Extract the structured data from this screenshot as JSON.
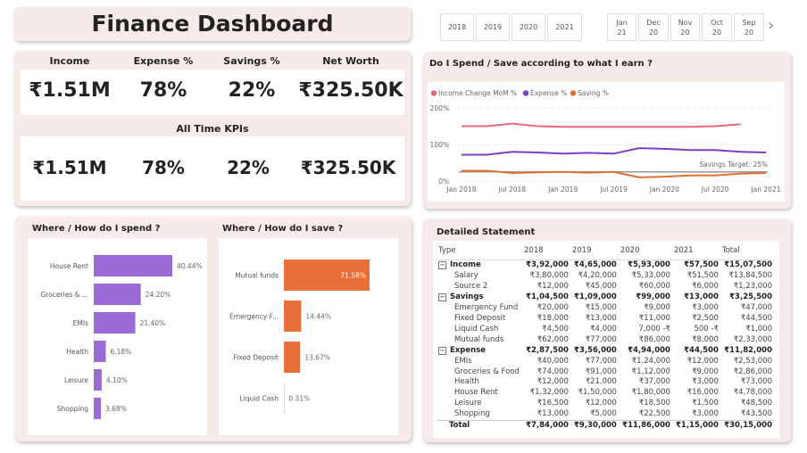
{
  "title": "Finance Dashboard",
  "year_slicer": [
    "2018",
    "2019",
    "2020",
    "2021"
  ],
  "month_slicer": [
    {
      "month": "Jan",
      "year": "21"
    },
    {
      "month": "Dec",
      "year": "20"
    },
    {
      "month": "Nov",
      "year": "20"
    },
    {
      "month": "Oct",
      "year": "20"
    },
    {
      "month": "Sep",
      "year": "20"
    }
  ],
  "next_glyph": "›",
  "kpis": {
    "labels": [
      "Income",
      "Expense %",
      "Savings %",
      "Net Worth"
    ],
    "values": [
      "₹1.51M",
      "78%",
      "22%",
      "₹325.50K"
    ],
    "all_time_title": "All Time KPIs",
    "all_time_values": [
      "₹1.51M",
      "78%",
      "22%",
      "₹325.50K"
    ]
  },
  "line_chart": {
    "title": "Do I Spend / Save according to what I earn ?",
    "legend": [
      "Income Change MoM %",
      "Expense %",
      "Saving %"
    ],
    "colors": [
      "#e0697a",
      "#7b3fc4",
      "#e07030"
    ],
    "y_ticks": [
      "200%",
      "100%",
      "0%"
    ],
    "x_ticks": [
      "Jan 2018",
      "Jul 2018",
      "Jan 2019",
      "Jul 2019",
      "Jan 2020",
      "Jul 2020",
      "Jan 2021"
    ],
    "target_label": "Savings Target: 25%",
    "chart_data": {
      "type": "line",
      "x": [
        "Jan 2018",
        "Apr 2018",
        "Jul 2018",
        "Oct 2018",
        "Jan 2019",
        "Apr 2019",
        "Jul 2019",
        "Oct 2019",
        "Jan 2020",
        "Apr 2020",
        "Jul 2020",
        "Oct 2020",
        "Jan 2021"
      ],
      "series": [
        {
          "name": "Income Change MoM %",
          "values": [
            150,
            150,
            157,
            150,
            148,
            148,
            148,
            148,
            148,
            148,
            150,
            155,
            null
          ]
        },
        {
          "name": "Expense %",
          "values": [
            72,
            72,
            80,
            78,
            75,
            77,
            75,
            90,
            88,
            85,
            85,
            80,
            78
          ]
        },
        {
          "name": "Saving %",
          "values": [
            28,
            28,
            22,
            24,
            25,
            23,
            25,
            10,
            12,
            15,
            15,
            20,
            22
          ]
        }
      ],
      "target": 25,
      "ylim": [
        0,
        200
      ]
    }
  },
  "spend_chart": {
    "title": "Where / How do I spend ?",
    "color": "#9a6bd6",
    "chart_data": {
      "type": "bar",
      "categories": [
        "House Rent",
        "Groceries & ...",
        "EMIs",
        "Health",
        "Leisure",
        "Shopping"
      ],
      "values": [
        40.44,
        24.2,
        21.4,
        6.18,
        4.1,
        3.68
      ],
      "labels": [
        "40.44%",
        "24.20%",
        "21.40%",
        "6.18%",
        "4.10%",
        "3.68%"
      ]
    }
  },
  "save_chart": {
    "title": "Where / How do I save ?",
    "color": "#e87038",
    "chart_data": {
      "type": "bar",
      "categories": [
        "Mutual funds",
        "Emergency F...",
        "Fixed Deposit",
        "Liquid Cash"
      ],
      "values": [
        71.58,
        14.44,
        13.67,
        0.31
      ],
      "labels": [
        "71.58%",
        "14.44%",
        "13.67%",
        "0.31%"
      ]
    }
  },
  "statement": {
    "title": "Detailed Statement",
    "columns": [
      "Type",
      "2018",
      "2019",
      "2020",
      "2021",
      "Total"
    ],
    "rows": [
      {
        "kind": "grp",
        "cells": [
          "Income",
          "₹3,92,000",
          "₹4,65,000",
          "₹5,93,000",
          "₹57,500",
          "₹15,07,500"
        ]
      },
      {
        "kind": "child",
        "cells": [
          "Salary",
          "₹3,80,000",
          "₹4,20,000",
          "₹5,33,000",
          "₹51,500",
          "₹13,84,500"
        ]
      },
      {
        "kind": "child",
        "cells": [
          "Source 2",
          "₹12,000",
          "₹45,000",
          "₹60,000",
          "₹6,000",
          "₹1,23,000"
        ]
      },
      {
        "kind": "grp",
        "cells": [
          "Savings",
          "₹1,04,500",
          "₹1,09,000",
          "₹99,000",
          "₹13,000",
          "₹3,25,500"
        ]
      },
      {
        "kind": "child",
        "cells": [
          "Emergency Fund",
          "₹20,000",
          "₹15,000",
          "₹9,000",
          "₹3,000",
          "₹47,000"
        ]
      },
      {
        "kind": "child",
        "cells": [
          "Fixed Deposit",
          "₹18,000",
          "₹13,000",
          "₹11,000",
          "₹2,500",
          "₹44,500"
        ]
      },
      {
        "kind": "child",
        "cells": [
          "Liquid Cash",
          "₹4,500",
          "₹4,000",
          "7,000 -₹",
          "500 -₹",
          "₹1,000"
        ]
      },
      {
        "kind": "child",
        "cells": [
          "Mutual funds",
          "₹62,000",
          "₹77,000",
          "₹86,000",
          "₹8,000",
          "₹2,33,000"
        ]
      },
      {
        "kind": "grp",
        "cells": [
          "Expense",
          "₹2,87,500",
          "₹3,56,000",
          "₹4,94,000",
          "₹44,500",
          "₹11,82,000"
        ]
      },
      {
        "kind": "child",
        "cells": [
          "EMIs",
          "₹40,000",
          "₹77,000",
          "₹1,24,000",
          "₹12,000",
          "₹2,53,000"
        ]
      },
      {
        "kind": "child",
        "cells": [
          "Groceries & Food",
          "₹74,000",
          "₹91,000",
          "₹1,12,000",
          "₹9,000",
          "₹2,86,000"
        ]
      },
      {
        "kind": "child",
        "cells": [
          "Health",
          "₹12,000",
          "₹21,000",
          "₹37,000",
          "₹3,000",
          "₹73,000"
        ]
      },
      {
        "kind": "child",
        "cells": [
          "House Rent",
          "₹1,32,000",
          "₹1,50,000",
          "₹1,80,000",
          "₹16,000",
          "₹4,78,000"
        ]
      },
      {
        "kind": "child",
        "cells": [
          "Leisure",
          "₹16,500",
          "₹12,000",
          "₹18,500",
          "₹1,500",
          "₹48,500"
        ]
      },
      {
        "kind": "child",
        "cells": [
          "Shopping",
          "₹13,000",
          "₹5,000",
          "₹22,500",
          "₹3,000",
          "₹43,500"
        ]
      },
      {
        "kind": "tot",
        "cells": [
          "Total",
          "₹7,84,000",
          "₹9,30,000",
          "₹11,86,000",
          "₹1,15,000",
          "₹30,15,000"
        ]
      }
    ]
  }
}
